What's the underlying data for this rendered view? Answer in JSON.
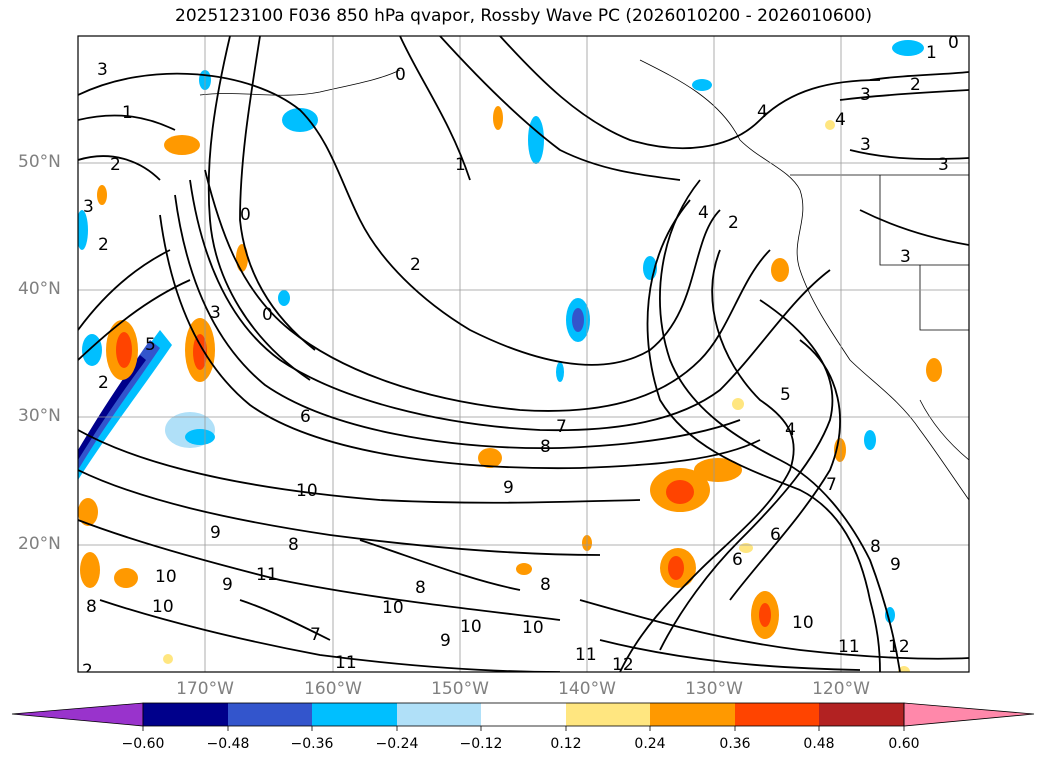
{
  "title": "2025123100 F036 850 hPa qvapor, Rossby Wave PC (2026010200 - 2026010600)",
  "lat_labels": [
    "50°N",
    "40°N",
    "30°N",
    "20°N"
  ],
  "lon_labels": [
    "170°W",
    "160°W",
    "150°W",
    "140°W",
    "130°W",
    "120°W"
  ],
  "colorbar": {
    "ticks": [
      "−0.60",
      "−0.48",
      "−0.36",
      "−0.24",
      "−0.12",
      "0.12",
      "0.24",
      "0.36",
      "0.48",
      "0.60"
    ],
    "colors": [
      "#9933cc",
      "#00008b",
      "#3355cc",
      "#00bfff",
      "#b0e0f8",
      "#ffffff",
      "#ffe680",
      "#ff9900",
      "#ff4400",
      "#b22222",
      "#ff88aa"
    ]
  },
  "contour_labels": [
    "3",
    "1",
    "2",
    "3",
    "2",
    "0",
    "1",
    "2",
    "0",
    "3",
    "0",
    "6",
    "8",
    "7",
    "9",
    "10",
    "9",
    "8",
    "11",
    "10",
    "10",
    "8",
    "11",
    "7",
    "10",
    "9",
    "8",
    "10",
    "9",
    "8",
    "10",
    "11",
    "12",
    "4",
    "5",
    "4",
    "7",
    "6",
    "6",
    "9",
    "8",
    "10",
    "11",
    "12",
    "4",
    "3",
    "2",
    "3",
    "3",
    "2",
    "0",
    "1",
    "4",
    "3",
    "5",
    "2",
    "2"
  ]
}
